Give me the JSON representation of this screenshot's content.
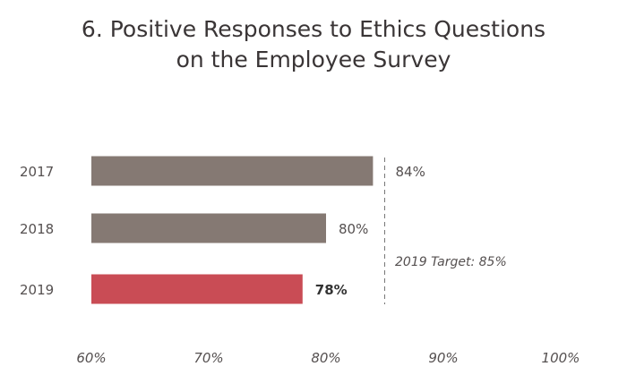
{
  "chart_data": {
    "type": "bar",
    "orientation": "horizontal",
    "title_lines": [
      "6. Positive Responses to Ethics Questions",
      "on the Employee Survey"
    ],
    "categories": [
      "2017",
      "2018",
      "2019"
    ],
    "values": [
      84,
      80,
      78
    ],
    "value_labels": [
      "84%",
      "80%",
      "78%"
    ],
    "highlight_index": 2,
    "xlim": [
      60,
      100
    ],
    "xticks": [
      60,
      70,
      80,
      90,
      100
    ],
    "xtick_labels": [
      "60%",
      "70%",
      "80%",
      "90%",
      "100%"
    ],
    "target": {
      "value": 85,
      "label": "2019 Target: 85%"
    },
    "colors": {
      "bar": "#857973",
      "highlight": "#c94c55",
      "target_line": "#777777"
    },
    "grid": false,
    "legend": "none"
  }
}
